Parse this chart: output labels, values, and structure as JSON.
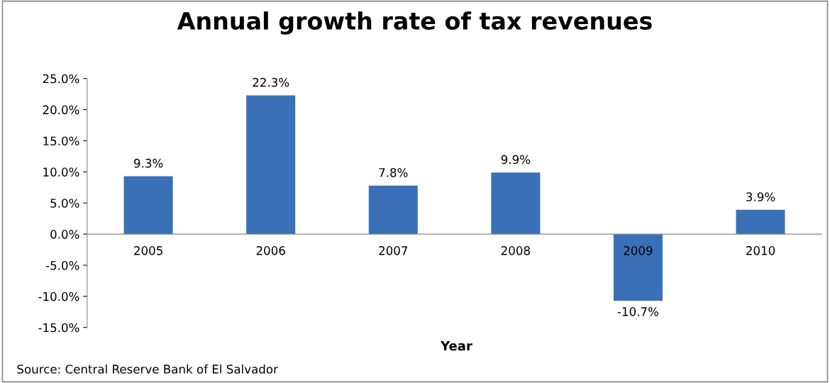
{
  "chart_data": {
    "type": "bar",
    "title": "Annual growth rate of tax revenues",
    "xlabel": "Year",
    "categories": [
      "2005",
      "2006",
      "2007",
      "2008",
      "2009",
      "2010"
    ],
    "values": [
      9.3,
      22.3,
      7.8,
      9.9,
      -10.7,
      3.9
    ],
    "value_labels": [
      "9.3%",
      "22.3%",
      "7.8%",
      "9.9%",
      "-10.7%",
      "3.9%"
    ],
    "color": "#3a70b8",
    "ylim": [
      -15,
      25
    ],
    "yticks": [
      {
        "value": -15,
        "label": "-15.0%"
      },
      {
        "value": -10,
        "label": "-10.0%"
      },
      {
        "value": -5,
        "label": "-5.0%"
      },
      {
        "value": 0,
        "label": "0.0%"
      },
      {
        "value": 5,
        "label": "5.0%"
      },
      {
        "value": 10,
        "label": "10.0%"
      },
      {
        "value": 15,
        "label": "15.0%"
      },
      {
        "value": 20,
        "label": "20.0%"
      },
      {
        "value": 25,
        "label": "25.0%"
      }
    ],
    "grid": false,
    "legend": false,
    "annotations": [
      "Source: Central Reserve Bank of El Salvador"
    ]
  }
}
